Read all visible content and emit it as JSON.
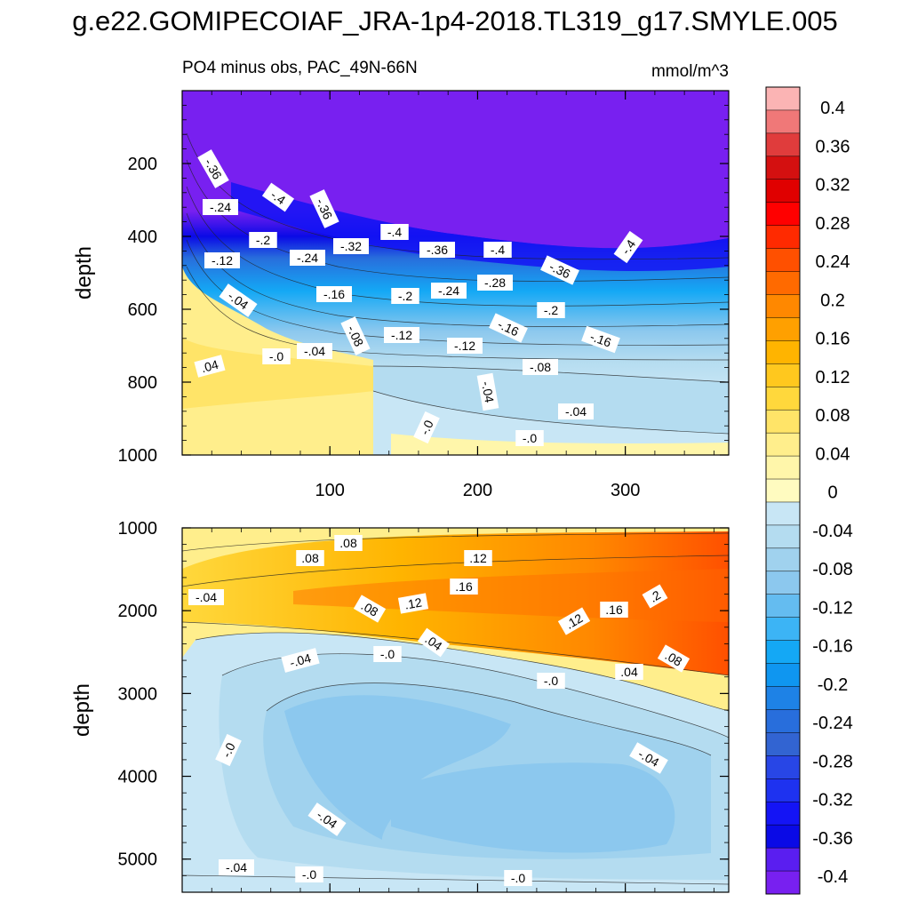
{
  "title": "g.e22.GOMIPECOIAF_JRA-1p4-2018.TL319_g17.SMYLE.005",
  "chart_data": [
    {
      "type": "heatmap",
      "subtitle": "PO4 minus obs, PAC_49N-66N",
      "units": "mmol/m^3",
      "ylabel": "depth",
      "xlabel": "",
      "xlim": [
        0,
        370
      ],
      "ylim": [
        1000,
        0
      ],
      "x_ticks": [
        100,
        200,
        300
      ],
      "y_ticks": [
        200,
        400,
        600,
        800,
        1000
      ],
      "contour_labels": [
        "-.36",
        "-.4",
        "-.36",
        "-.24",
        "-.2",
        "-.24",
        "-.32",
        "-.4",
        "-.36",
        "-.4",
        "-.36",
        "-.4",
        "-.12",
        "-.04",
        "-.16",
        "-.2",
        "-.24",
        "-.28",
        "-.2",
        "-.12",
        "-.16",
        "-.16",
        "-.08",
        "-.12",
        "-.08",
        "-.04",
        "-.0",
        ".04",
        "-.04",
        "-.04",
        "-.0",
        "-.0"
      ]
    },
    {
      "type": "heatmap",
      "ylabel": "depth",
      "xlabel": "",
      "xlim": [
        0,
        370
      ],
      "ylim": [
        5400,
        1000
      ],
      "x_ticks": [
        100,
        200,
        300
      ],
      "y_ticks": [
        1000,
        2000,
        3000,
        4000,
        5000
      ],
      "contour_labels": [
        ".08",
        ".08",
        ".12",
        ".16",
        ".04",
        ".08",
        ".12",
        ".12",
        ".16",
        ".2",
        ".04",
        "-.0",
        ".04",
        "-.04",
        "-.0",
        ".08",
        "-.04",
        "-.0",
        "-.04",
        "-.04",
        "-.0",
        "-.0",
        "-.04"
      ]
    }
  ],
  "colorbar": {
    "labels": [
      "0.4",
      "0.36",
      "0.32",
      "0.28",
      "0.24",
      "0.2",
      "0.16",
      "0.12",
      "0.08",
      "0.04",
      "0",
      "-0.04",
      "-0.08",
      "-0.12",
      "-0.16",
      "-0.2",
      "-0.24",
      "-0.28",
      "-0.32",
      "-0.36",
      "-0.4"
    ],
    "colors_top_to_bottom": [
      "#fbb4b4",
      "#f07878",
      "#e03c3c",
      "#d41010",
      "#e00000",
      "#ff0000",
      "#ff2a00",
      "#ff5000",
      "#ff6a00",
      "#ff8800",
      "#ffa000",
      "#ffb400",
      "#ffc81e",
      "#ffd83c",
      "#ffe468",
      "#ffee8c",
      "#fff6aa",
      "#fffbc0",
      "#c8e6f5",
      "#b4dcf0",
      "#a0d2ee",
      "#8cc8ee",
      "#64bcf0",
      "#3cb4f5",
      "#14a8f5",
      "#0f96f0",
      "#1e82e6",
      "#286edc",
      "#3264d2",
      "#2846e6",
      "#1e32f0",
      "#1414f5",
      "#0a0ae6",
      "#5a1ef0",
      "#7820f0"
    ]
  }
}
